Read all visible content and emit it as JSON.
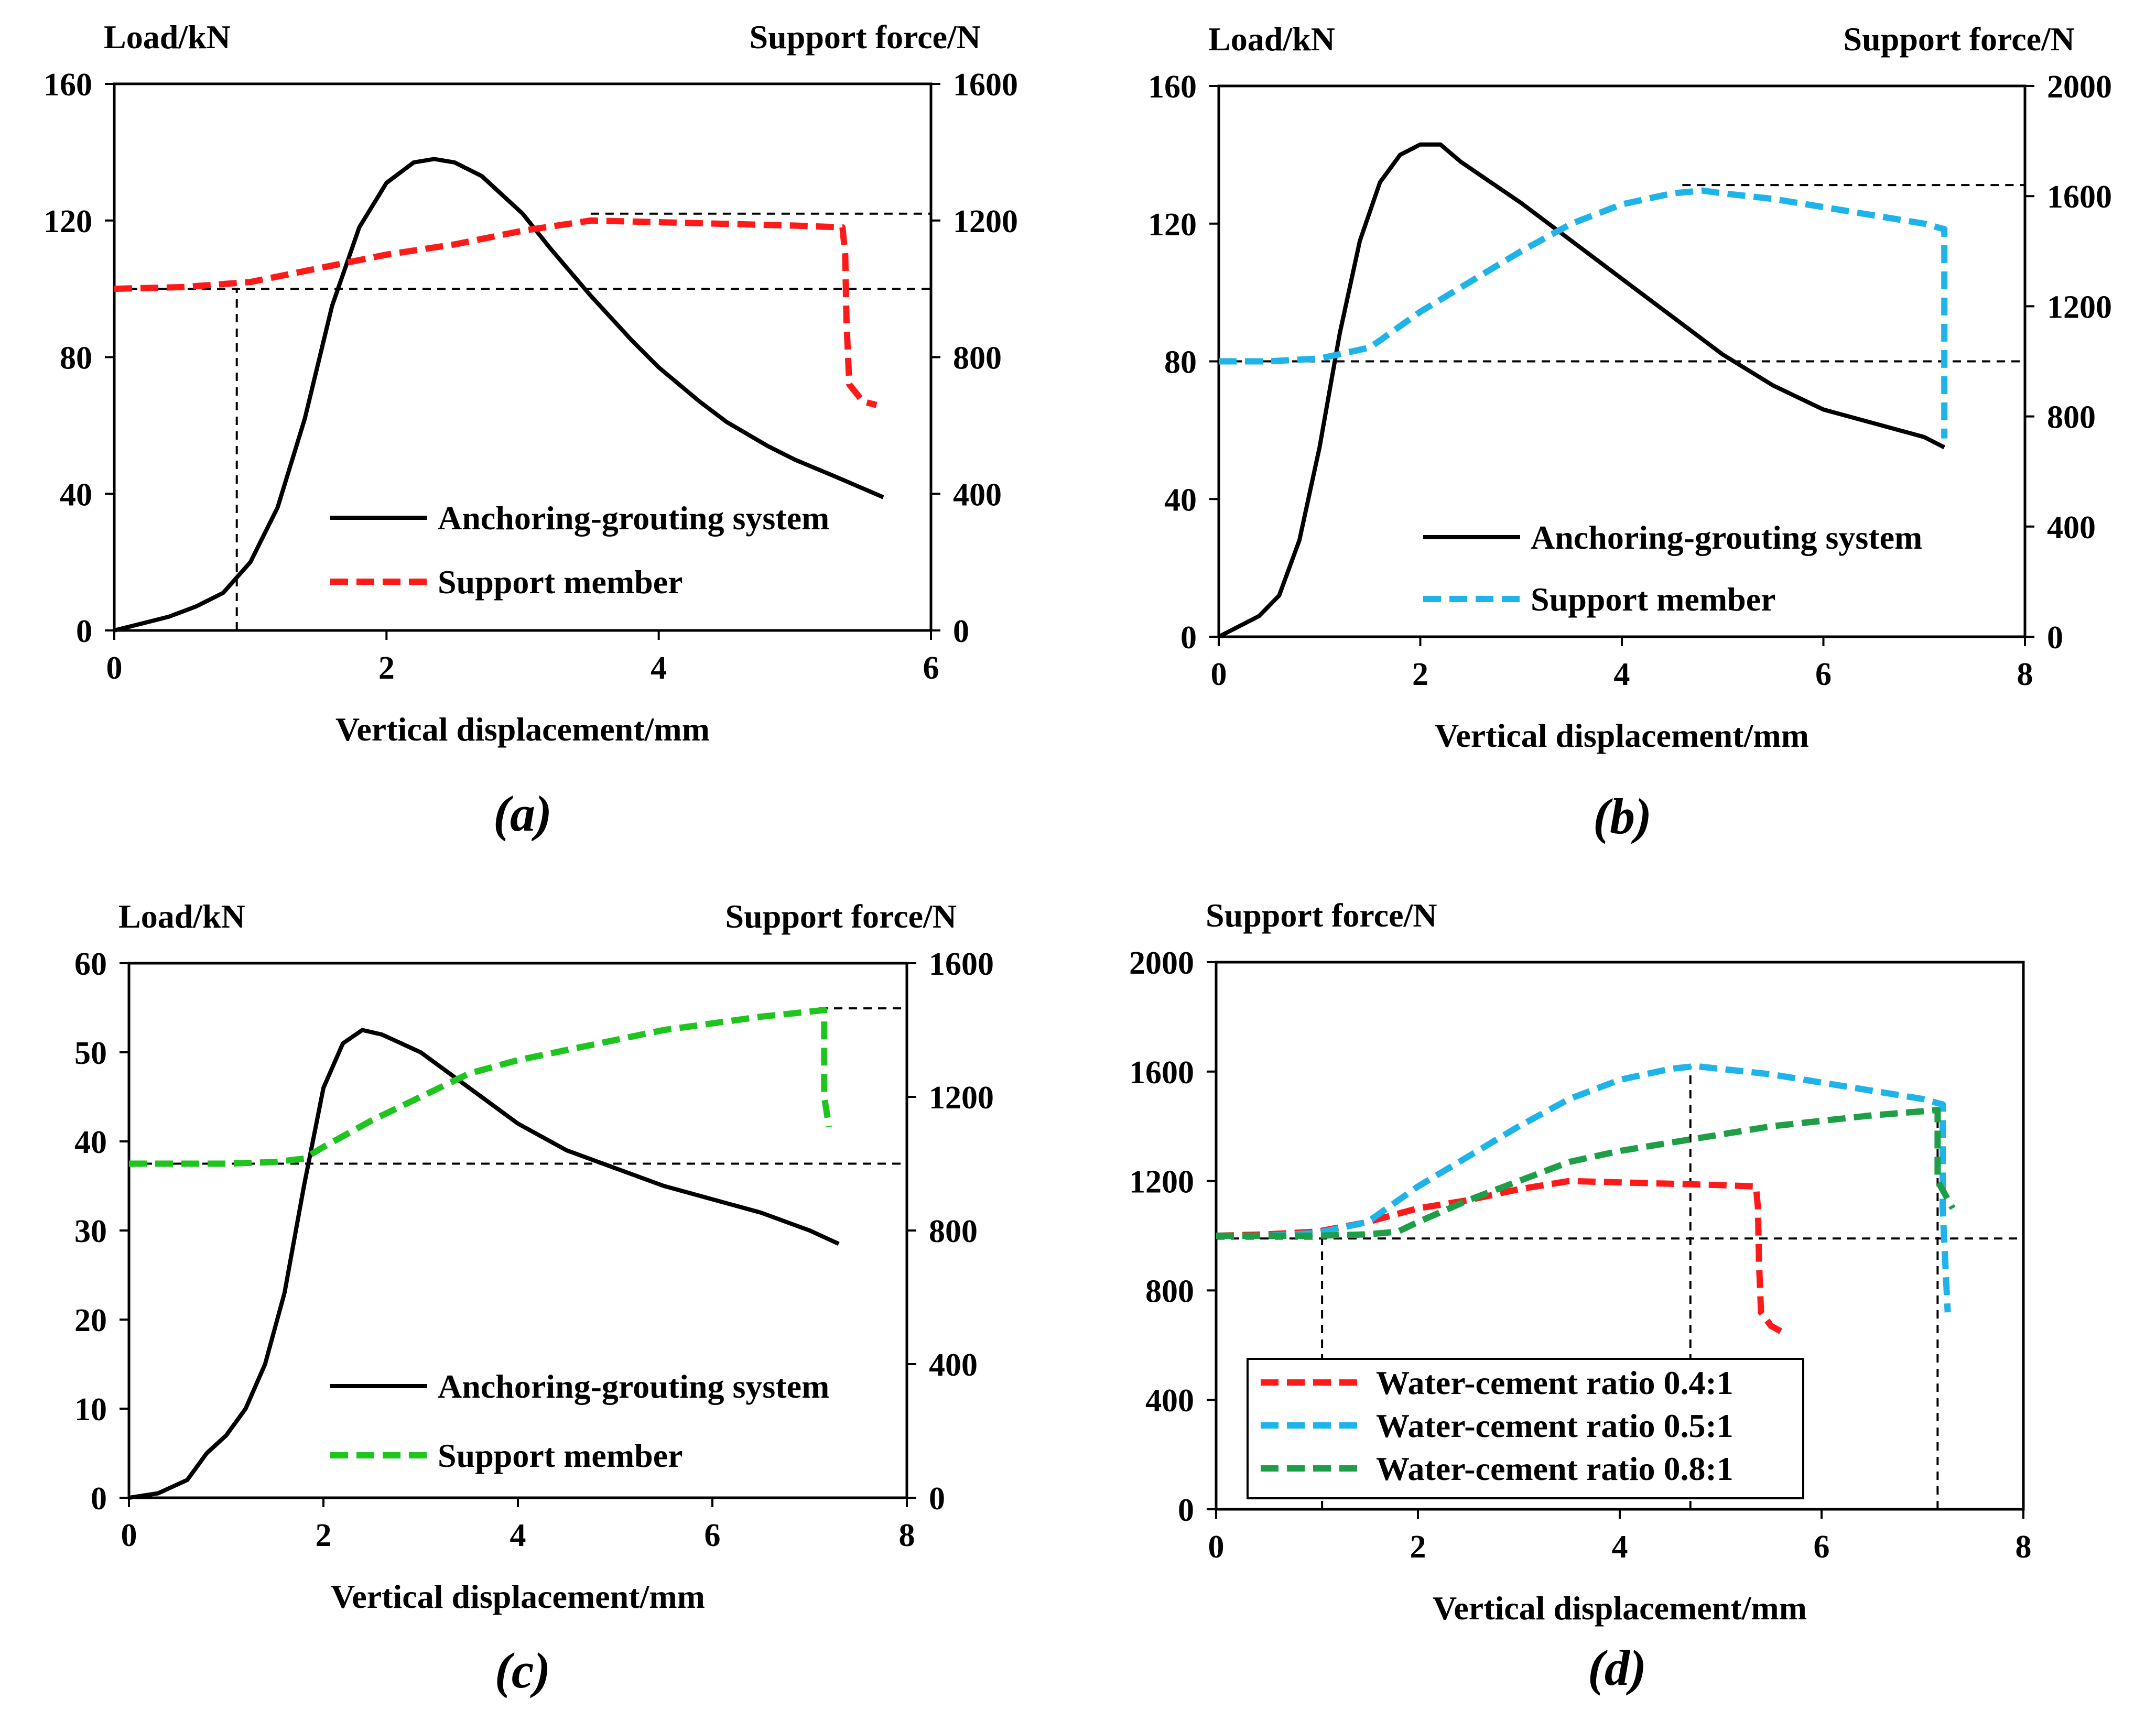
{
  "figure": {
    "colors": {
      "black": "#000000",
      "red": "#ff1a1a",
      "blue": "#1eb4ea",
      "green": "#1fc41f",
      "dark_green": "#1e9e46",
      "reference": "#000000"
    }
  },
  "chart_data": [
    {
      "id": "a",
      "type": "line",
      "caption": "(a)",
      "xlabel": "Vertical displacement/mm",
      "ylabel_left": "Load/kN",
      "ylabel_right": "Support force/N",
      "xlim": [
        0,
        6
      ],
      "xticks": [
        "0",
        "2",
        "4",
        "6"
      ],
      "ylim_left": [
        0,
        160
      ],
      "yticks_left": [
        "0",
        "40",
        "80",
        "120",
        "160"
      ],
      "ylim_right": [
        0,
        1600
      ],
      "yticks_right": [
        "0",
        "400",
        "800",
        "1200",
        "1600"
      ],
      "legend": [
        "Anchoring-grouting system",
        "Support member"
      ],
      "series": [
        {
          "name": "Anchoring-grouting system",
          "axis": "left",
          "color": "#000000",
          "style": "solid",
          "x": [
            0,
            0.2,
            0.4,
            0.6,
            0.8,
            1.0,
            1.2,
            1.4,
            1.6,
            1.8,
            2.0,
            2.2,
            2.35,
            2.5,
            2.7,
            3.0,
            3.2,
            3.5,
            3.8,
            4.0,
            4.3,
            4.5,
            4.8,
            5.0,
            5.3,
            5.65
          ],
          "y": [
            0,
            2,
            4,
            7,
            11,
            20,
            36,
            62,
            95,
            118,
            131,
            137,
            138,
            137,
            133,
            122,
            112,
            98,
            85,
            77,
            67,
            61,
            54,
            50,
            45,
            39
          ]
        },
        {
          "name": "Support member",
          "axis": "right",
          "color": "#ff1a1a",
          "style": "dashed",
          "x": [
            0,
            0.5,
            1.0,
            1.5,
            2.0,
            2.5,
            3.0,
            3.5,
            4.0,
            4.5,
            5.0,
            5.35,
            5.37,
            5.38,
            5.4,
            5.5,
            5.6
          ],
          "y": [
            1000,
            1005,
            1020,
            1060,
            1100,
            1130,
            1170,
            1200,
            1195,
            1190,
            1185,
            1180,
            1100,
            900,
            720,
            670,
            660
          ]
        }
      ],
      "reference_lines": [
        {
          "orientation": "h",
          "axis": "right",
          "value": 1000,
          "from": 0,
          "to": 6
        },
        {
          "orientation": "h",
          "axis": "right",
          "value": 1220,
          "from": 3.5,
          "to": 6
        },
        {
          "orientation": "v",
          "value": 0.9,
          "from": 0,
          "to": 1000,
          "axis": "right"
        }
      ]
    },
    {
      "id": "b",
      "type": "line",
      "caption": "(b)",
      "xlabel": "Vertical displacement/mm",
      "ylabel_left": "Load/kN",
      "ylabel_right": "Support force/N",
      "xlim": [
        0,
        8
      ],
      "xticks": [
        "0",
        "2",
        "4",
        "6",
        "8"
      ],
      "ylim_left": [
        0,
        160
      ],
      "yticks_left": [
        "0",
        "40",
        "80",
        "120",
        "160"
      ],
      "ylim_right": [
        0,
        2000
      ],
      "yticks_right": [
        "0",
        "400",
        "800",
        "1200",
        "1600",
        "2000"
      ],
      "legend": [
        "Anchoring-grouting system",
        "Support member"
      ],
      "series": [
        {
          "name": "Anchoring-grouting system",
          "axis": "left",
          "color": "#000000",
          "style": "solid",
          "x": [
            0,
            0.2,
            0.4,
            0.6,
            0.8,
            1.0,
            1.2,
            1.4,
            1.6,
            1.8,
            2.0,
            2.2,
            2.4,
            2.6,
            3.0,
            3.5,
            4.0,
            4.5,
            5.0,
            5.5,
            6.0,
            6.5,
            7.0,
            7.2
          ],
          "y": [
            0,
            3,
            6,
            12,
            28,
            55,
            88,
            115,
            132,
            140,
            143,
            143,
            138,
            134,
            126,
            115,
            104,
            93,
            82,
            73,
            66,
            62,
            58,
            55
          ]
        },
        {
          "name": "Support member",
          "axis": "right",
          "color": "#1eb4ea",
          "style": "dashed",
          "x": [
            0,
            0.5,
            1.0,
            1.5,
            2.0,
            2.5,
            3.0,
            3.5,
            4.0,
            4.5,
            4.8,
            5.0,
            5.5,
            6.0,
            6.5,
            7.0,
            7.2,
            7.2,
            7.2
          ],
          "y": [
            1000,
            1000,
            1010,
            1050,
            1180,
            1290,
            1400,
            1500,
            1570,
            1610,
            1620,
            1610,
            1590,
            1560,
            1530,
            1500,
            1480,
            1100,
            720
          ]
        }
      ],
      "reference_lines": [
        {
          "orientation": "h",
          "axis": "left",
          "value": 80,
          "from": 0,
          "to": 8
        },
        {
          "orientation": "h",
          "axis": "right",
          "value": 1640,
          "from": 4.6,
          "to": 8
        }
      ]
    },
    {
      "id": "c",
      "type": "line",
      "caption": "(c)",
      "xlabel": "Vertical displacement/mm",
      "ylabel_left": "Load/kN",
      "ylabel_right": "Support force/N",
      "xlim": [
        0,
        8
      ],
      "xticks": [
        "0",
        "2",
        "4",
        "6",
        "8"
      ],
      "ylim_left": [
        0,
        60
      ],
      "yticks_left": [
        "0",
        "10",
        "20",
        "30",
        "40",
        "50",
        "60"
      ],
      "ylim_right": [
        0,
        1600
      ],
      "yticks_right": [
        "0",
        "400",
        "800",
        "1200",
        "1600"
      ],
      "legend": [
        "Anchoring-grouting system",
        "Support member"
      ],
      "series": [
        {
          "name": "Anchoring-grouting system",
          "axis": "left",
          "color": "#000000",
          "style": "solid",
          "x": [
            0,
            0.3,
            0.6,
            0.8,
            1.0,
            1.2,
            1.4,
            1.6,
            1.8,
            2.0,
            2.2,
            2.4,
            2.6,
            3.0,
            3.5,
            4.0,
            4.5,
            5.0,
            5.5,
            6.0,
            6.5,
            7.0,
            7.3
          ],
          "y": [
            0,
            0.5,
            2,
            5,
            7,
            10,
            15,
            23,
            35,
            46,
            51,
            52.5,
            52,
            50,
            46,
            42,
            39,
            37,
            35,
            33.5,
            32,
            30,
            28.5
          ]
        },
        {
          "name": "Support member",
          "axis": "right",
          "color": "#1fc41f",
          "style": "dashed",
          "x": [
            0,
            0.5,
            1.0,
            1.5,
            1.8,
            2.0,
            2.5,
            3.0,
            3.5,
            4.0,
            4.5,
            5.0,
            5.5,
            6.0,
            6.5,
            7.0,
            7.15,
            7.15,
            7.2
          ],
          "y": [
            1000,
            1000,
            1000,
            1005,
            1015,
            1050,
            1130,
            1200,
            1270,
            1310,
            1340,
            1370,
            1400,
            1420,
            1440,
            1455,
            1460,
            1200,
            1110
          ]
        }
      ],
      "reference_lines": [
        {
          "orientation": "h",
          "axis": "right",
          "value": 1000,
          "from": 0,
          "to": 8
        },
        {
          "orientation": "h",
          "axis": "right",
          "value": 1465,
          "from": 7.1,
          "to": 8
        }
      ]
    },
    {
      "id": "d",
      "type": "line",
      "caption": "(d)",
      "xlabel": "Vertical displacement/mm",
      "ylabel_left": "Support force/N",
      "xlim": [
        0,
        8
      ],
      "xticks": [
        "0",
        "2",
        "4",
        "6",
        "8"
      ],
      "ylim_left": [
        0,
        2000
      ],
      "yticks_left": [
        "0",
        "400",
        "800",
        "1200",
        "1600",
        "2000"
      ],
      "legend": [
        "Water-cement ratio 0.4:1",
        "Water-cement ratio 0.5:1",
        "Water-cement ratio 0.8:1"
      ],
      "series": [
        {
          "name": "Water-cement ratio 0.4:1",
          "axis": "left",
          "color": "#ff1a1a",
          "style": "dashed",
          "x": [
            0,
            0.5,
            1.0,
            1.5,
            2.0,
            2.5,
            3.0,
            3.5,
            4.0,
            4.5,
            5.0,
            5.35,
            5.37,
            5.38,
            5.4,
            5.5,
            5.6
          ],
          "y": [
            1000,
            1005,
            1015,
            1050,
            1100,
            1130,
            1170,
            1200,
            1195,
            1190,
            1185,
            1180,
            1100,
            900,
            720,
            670,
            650
          ]
        },
        {
          "name": "Water-cement ratio 0.5:1",
          "axis": "left",
          "color": "#1eb4ea",
          "style": "dashed",
          "x": [
            0,
            0.5,
            1.0,
            1.5,
            2.0,
            2.5,
            3.0,
            3.5,
            4.0,
            4.5,
            4.75,
            5.0,
            5.5,
            6.0,
            6.5,
            7.0,
            7.2,
            7.2,
            7.25
          ],
          "y": [
            1000,
            1000,
            1010,
            1050,
            1180,
            1290,
            1400,
            1500,
            1570,
            1610,
            1620,
            1610,
            1590,
            1560,
            1530,
            1500,
            1480,
            1100,
            720
          ]
        },
        {
          "name": "Water-cement ratio 0.8:1",
          "axis": "left",
          "color": "#1e9e46",
          "style": "dashed",
          "x": [
            0,
            0.5,
            1.0,
            1.5,
            1.8,
            2.0,
            2.5,
            3.0,
            3.5,
            4.0,
            4.5,
            5.0,
            5.5,
            6.0,
            6.5,
            7.0,
            7.15,
            7.15,
            7.3
          ],
          "y": [
            1000,
            1000,
            1000,
            1005,
            1015,
            1050,
            1130,
            1200,
            1270,
            1310,
            1340,
            1370,
            1400,
            1420,
            1440,
            1455,
            1460,
            1200,
            1100
          ]
        }
      ],
      "reference_lines": [
        {
          "orientation": "h",
          "axis": "left",
          "value": 990,
          "from": 0,
          "to": 8
        },
        {
          "orientation": "v",
          "value": 1.05,
          "from": 0,
          "to": 1000,
          "axis": "left"
        },
        {
          "orientation": "v",
          "value": 4.7,
          "from": 0,
          "to": 1620,
          "axis": "left"
        },
        {
          "orientation": "v",
          "value": 7.15,
          "from": 0,
          "to": 1460,
          "axis": "left"
        }
      ]
    }
  ]
}
